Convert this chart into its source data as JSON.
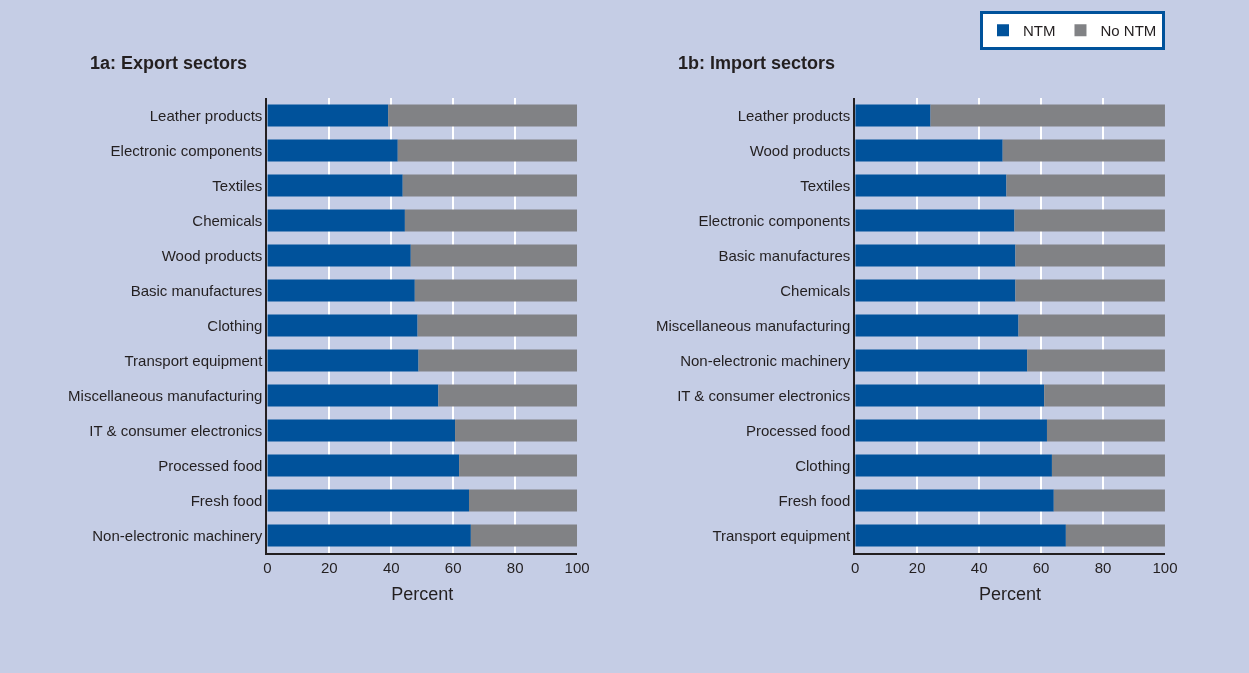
{
  "chart_data": [
    {
      "type": "bar",
      "orientation": "horizontal",
      "stacked": true,
      "title": "1a: Export sectors",
      "xlabel": "Percent",
      "categories": [
        "Leather products",
        "Electronic components",
        "Textiles",
        "Chemicals",
        "Wood products",
        "Basic manufactures",
        "Clothing",
        "Transport equipment",
        "Miscellaneous manufacturing",
        "IT & consumer electronics",
        "Processed food",
        "Fresh food",
        "Non-electronic machinery"
      ],
      "series": [
        {
          "color": "#00529b",
          "values": [
            39.0,
            42.1,
            43.7,
            44.4,
            46.3,
            47.6,
            48.5,
            48.8,
            55.2,
            60.6,
            61.9,
            65.1,
            65.7
          ]
        },
        {
          "color": "#818285",
          "values": [
            61.0,
            57.9,
            56.3,
            55.6,
            53.7,
            52.4,
            51.5,
            51.2,
            44.8,
            39.4,
            38.1,
            34.9,
            34.3
          ]
        }
      ],
      "xlim": [
        0,
        100
      ],
      "xticks": [
        0,
        20,
        40,
        60,
        80,
        100
      ],
      "grid": "x"
    },
    {
      "type": "bar",
      "orientation": "horizontal",
      "stacked": true,
      "title": "1b: Import sectors",
      "xlabel": "Percent",
      "categories": [
        "Leather products",
        "Wood products",
        "Textiles",
        "Electronic components",
        "Basic manufactures",
        "Chemicals",
        "Miscellaneous manufacturing",
        "Non-electronic machinery",
        "IT & consumer electronics",
        "Processed food",
        "Clothing",
        "Fresh food",
        "Transport equipment"
      ],
      "series": [
        {
          "name": "NTM",
          "color": "#00529b",
          "values": [
            24.3,
            47.6,
            48.8,
            51.4,
            51.7,
            51.7,
            52.7,
            55.5,
            61.0,
            61.9,
            63.5,
            64.1,
            68.0
          ]
        },
        {
          "name": "No NTM",
          "color": "#818285",
          "values": [
            75.7,
            52.4,
            51.2,
            48.6,
            48.3,
            48.3,
            47.3,
            44.5,
            39.0,
            38.1,
            36.5,
            35.9,
            32.0
          ]
        }
      ],
      "xlim": [
        0,
        100
      ],
      "xticks": [
        0,
        20,
        40,
        60,
        80,
        100
      ],
      "grid": "x",
      "legend": "top right"
    }
  ]
}
